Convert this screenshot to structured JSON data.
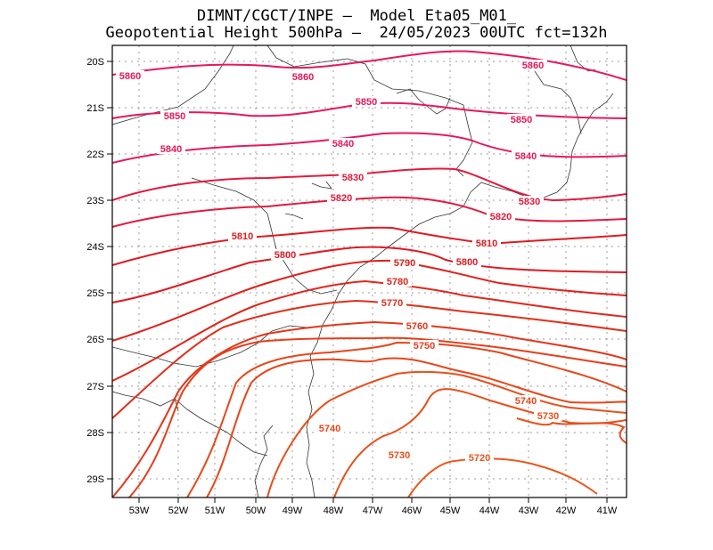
{
  "header": {
    "line1": "DIMNT/CGCT/INPE —  Model Eta05_M01_",
    "line2": "Geopotential Height 500hPa —  24/05/2023 00UTC fct=132h"
  },
  "map": {
    "lon_range": [
      -53.7,
      -40.5
    ],
    "lat_range": [
      -29.4,
      -19.8
    ],
    "grid": true,
    "xticks": [
      "53W",
      "52W",
      "51W",
      "50W",
      "49W",
      "48W",
      "47W",
      "46W",
      "45W",
      "44W",
      "43W",
      "42W",
      "41W"
    ],
    "yticks": [
      "20S",
      "21S",
      "22S",
      "23S",
      "24S",
      "25S",
      "26S",
      "27S",
      "28S",
      "29S"
    ]
  },
  "contours": [
    {
      "level": "5860",
      "color": "#e8185a",
      "labels": [
        "5860",
        "5860",
        "5860"
      ]
    },
    {
      "level": "5850",
      "color": "#e8185a",
      "labels": [
        "5850",
        "5850",
        "5850"
      ]
    },
    {
      "level": "5840",
      "color": "#e8185a",
      "labels": [
        "5840",
        "5840",
        "5840"
      ]
    },
    {
      "level": "5830",
      "color": "#e31a3c",
      "labels": [
        "5830",
        "5830"
      ]
    },
    {
      "level": "5820",
      "color": "#e31a3c",
      "labels": [
        "5820",
        "5820"
      ]
    },
    {
      "level": "5810",
      "color": "#e01a22",
      "labels": [
        "5810",
        "5810"
      ]
    },
    {
      "level": "5800",
      "color": "#e01a22",
      "labels": [
        "5800",
        "5800"
      ]
    },
    {
      "level": "5790",
      "color": "#e0201a",
      "labels": [
        "5790"
      ]
    },
    {
      "level": "5780",
      "color": "#e0261a",
      "labels": [
        "5780"
      ]
    },
    {
      "level": "5770",
      "color": "#e22e1a",
      "labels": [
        "5770"
      ]
    },
    {
      "level": "5760",
      "color": "#e4361a",
      "labels": [
        "5760"
      ]
    },
    {
      "level": "5750",
      "color": "#e63e1a",
      "labels": [
        "5750"
      ]
    },
    {
      "level": "5740",
      "color": "#e8461a",
      "labels": [
        "5740",
        "5740"
      ]
    },
    {
      "level": "5730",
      "color": "#ea4e1a",
      "labels": [
        "5730",
        "5730"
      ]
    },
    {
      "level": "5720",
      "color": "#ec561a",
      "labels": [
        "5720"
      ]
    }
  ]
}
